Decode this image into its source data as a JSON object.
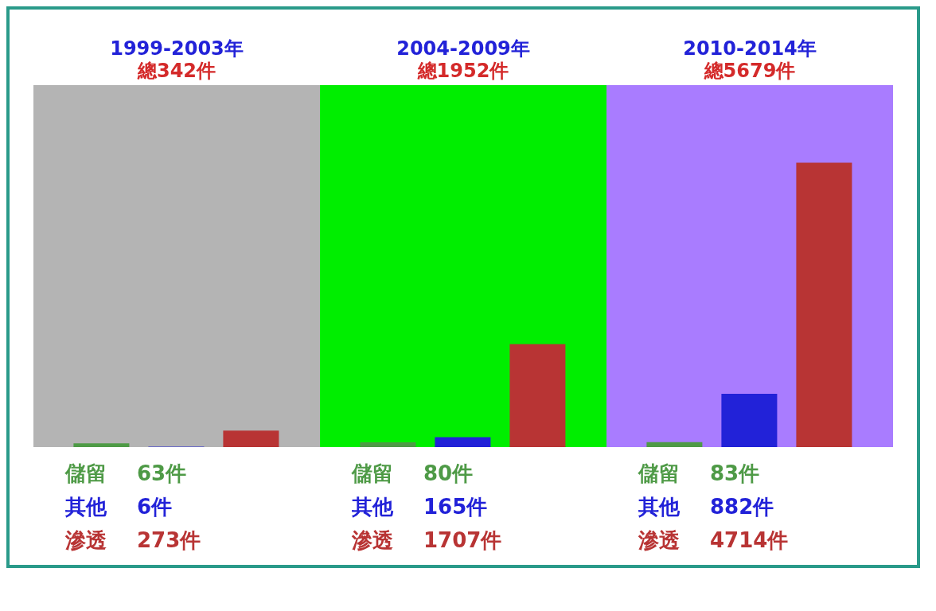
{
  "chart_data": {
    "type": "bar",
    "categories": [
      "1999-2003年",
      "2004-2009年",
      "2010-2014年"
    ],
    "annotations": [
      "總342件",
      "總1952件",
      "總5679件"
    ],
    "series": [
      {
        "name": "儲留",
        "color": "#4e9a46",
        "values": [
          63,
          80,
          83
        ],
        "value_labels": [
          "63件",
          "80件",
          "83件"
        ]
      },
      {
        "name": "其他",
        "color": "#2222d8",
        "values": [
          6,
          165,
          882
        ],
        "value_labels": [
          "6件",
          "165件",
          "882件"
        ]
      },
      {
        "name": "滲透",
        "color": "#b83434",
        "values": [
          273,
          1707,
          4714
        ],
        "value_labels": [
          "273件",
          "1707件",
          "4714件"
        ]
      }
    ],
    "bands": [
      {
        "axis": "x",
        "from": "1999-2003年",
        "to": "1999-2003年",
        "color": "#b4b4b4"
      },
      {
        "axis": "x",
        "from": "2004-2009年",
        "to": "2004-2009年",
        "color": "#00ee00"
      },
      {
        "axis": "x",
        "from": "2010-2014年",
        "to": "2010-2014年",
        "color": "#a97cff"
      }
    ],
    "legend": false
  }
}
